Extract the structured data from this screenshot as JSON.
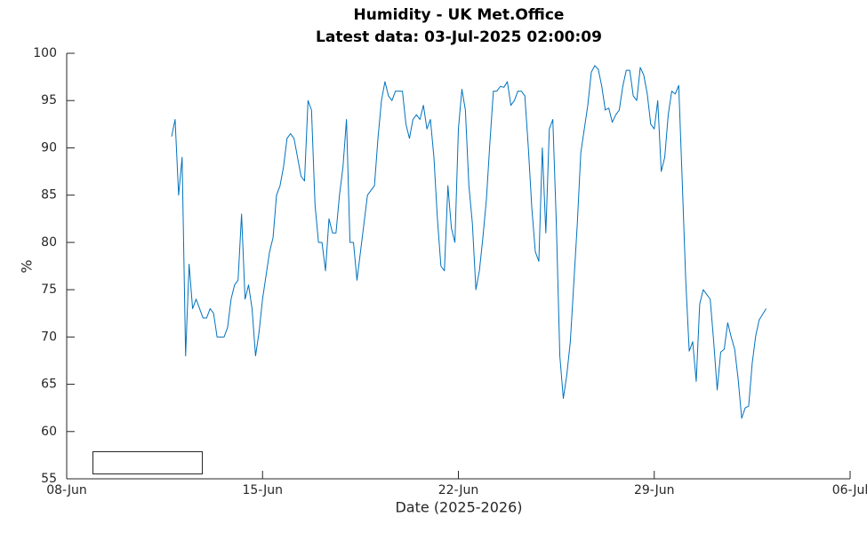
{
  "chart_data": {
    "type": "line",
    "title": "Humidity - UK Met.Office",
    "subtitle": "Latest data: 03-Jul-2025 02:00:09",
    "xlabel": "Date (2025-2026)",
    "ylabel": "%",
    "xlim": [
      8,
      36
    ],
    "xticks": [
      {
        "value": 8,
        "label": "08-Jun"
      },
      {
        "value": 15,
        "label": "15-Jun"
      },
      {
        "value": 22,
        "label": "22-Jun"
      },
      {
        "value": 29,
        "label": "29-Jun"
      },
      {
        "value": 36,
        "label": "06-Jul"
      }
    ],
    "ylim": [
      55,
      100
    ],
    "yticks": [
      55,
      60,
      65,
      70,
      75,
      80,
      85,
      90,
      95,
      100
    ],
    "grid": false,
    "x": [
      11.75,
      11.875,
      12,
      12.125,
      12.25,
      12.375,
      12.5,
      12.625,
      12.75,
      12.875,
      13,
      13.125,
      13.25,
      13.375,
      13.5,
      13.625,
      13.75,
      13.875,
      14,
      14.125,
      14.25,
      14.375,
      14.5,
      14.625,
      14.75,
      14.875,
      15,
      15.125,
      15.25,
      15.375,
      15.5,
      15.625,
      15.75,
      15.875,
      16,
      16.125,
      16.25,
      16.375,
      16.5,
      16.625,
      16.75,
      16.875,
      17,
      17.125,
      17.25,
      17.375,
      17.5,
      17.625,
      17.75,
      17.875,
      18,
      18.125,
      18.25,
      18.375,
      18.5,
      18.625,
      18.75,
      18.875,
      19,
      19.125,
      19.25,
      19.375,
      19.5,
      19.625,
      19.75,
      19.875,
      20,
      20.125,
      20.25,
      20.375,
      20.5,
      20.625,
      20.75,
      20.875,
      21,
      21.125,
      21.25,
      21.375,
      21.5,
      21.625,
      21.75,
      21.875,
      22,
      22.125,
      22.25,
      22.375,
      22.5,
      22.625,
      22.75,
      22.875,
      23,
      23.125,
      23.25,
      23.375,
      23.5,
      23.625,
      23.75,
      23.875,
      24,
      24.125,
      24.25,
      24.375,
      24.5,
      24.625,
      24.75,
      24.875,
      25,
      25.125,
      25.25,
      25.375,
      25.5,
      25.625,
      25.75,
      25.875,
      26,
      26.125,
      26.25,
      26.375,
      26.5,
      26.625,
      26.75,
      26.875,
      27,
      27.125,
      27.25,
      27.375,
      27.5,
      27.625,
      27.75,
      27.875,
      28,
      28.125,
      28.25,
      28.375,
      28.5,
      28.625,
      28.75,
      28.875,
      29,
      29.125,
      29.25,
      29.375,
      29.5,
      29.625,
      29.75,
      29.875,
      30,
      30.125,
      30.25,
      30.375,
      30.5,
      30.625,
      30.75,
      30.875,
      31,
      31.125,
      31.25,
      31.375,
      31.5,
      31.625,
      31.75,
      31.875,
      32,
      32.125,
      32.25,
      32.375,
      32.5,
      32.625,
      32.75,
      33
    ],
    "series": [
      {
        "color": "#0072bd",
        "values": [
          91.2,
          93,
          85,
          89,
          68,
          77.7,
          73,
          74,
          73,
          72,
          72,
          73,
          72.5,
          70,
          70,
          70,
          71,
          74,
          75.5,
          76,
          83,
          74,
          75.5,
          73,
          68,
          70.5,
          74,
          76.5,
          79,
          80.5,
          85,
          86,
          88,
          91,
          91.5,
          91,
          89,
          87,
          86.5,
          95,
          94,
          84,
          80,
          80,
          77,
          82.5,
          81,
          81,
          85,
          88,
          93,
          80,
          80,
          76,
          79,
          82,
          85,
          85.5,
          86,
          91,
          95,
          97,
          95.5,
          95,
          96,
          96,
          96,
          92.5,
          91,
          93,
          93.5,
          93,
          94.5,
          92,
          93,
          89,
          82.5,
          77.5,
          77,
          86,
          81.5,
          80,
          92,
          96.2,
          94,
          86,
          82,
          75,
          77,
          80.5,
          84.5,
          90.5,
          96,
          96,
          96.5,
          96.4,
          97,
          94.5,
          95,
          96,
          96,
          95.5,
          90,
          83.6,
          79,
          78,
          90,
          81,
          92,
          93,
          82,
          68,
          63.5,
          66,
          69.5,
          75.7,
          82,
          89.5,
          92,
          94.5,
          98,
          98.7,
          98.3,
          96.5,
          94,
          94.2,
          92.7,
          93.5,
          94,
          96.5,
          98.2,
          98.2,
          95.5,
          95,
          98.5,
          97.7,
          95.7,
          92.5,
          92,
          95,
          87.5,
          89,
          93.5,
          96,
          95.7,
          96.6,
          86.5,
          76,
          68.5,
          69.5,
          65.3,
          73.5,
          75,
          74.5,
          74,
          69.5,
          64.4,
          68.4,
          68.7,
          71.5,
          70,
          68.7,
          65.5,
          61.4,
          62.5,
          62.7,
          67.2,
          70.1,
          71.8,
          73
        ]
      }
    ]
  }
}
